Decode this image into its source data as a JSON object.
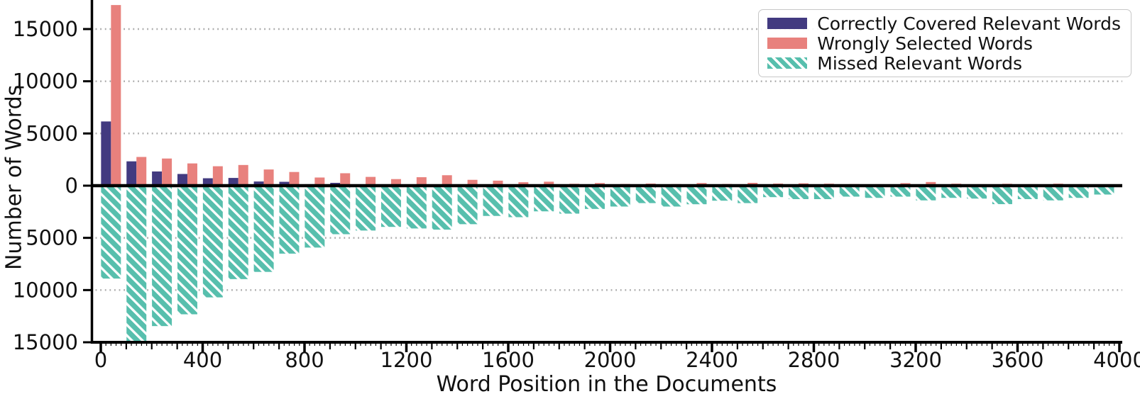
{
  "figure": {
    "ylabel": "Number of Words",
    "xlabel": "Word Position in the Documents"
  },
  "legend": {
    "items": [
      {
        "label": "Correctly Covered Relevant Words",
        "color": "#423a80",
        "hatch": false
      },
      {
        "label": "Wrongly Selected Words",
        "color": "#e8817d",
        "hatch": false
      },
      {
        "label": "Missed Relevant Words",
        "color": "#57bfad",
        "hatch": true
      }
    ]
  },
  "chart_data": {
    "type": "bar",
    "variant": "diverging-grouped-histogram",
    "title": "",
    "xlabel": "Word Position in the Documents",
    "ylabel": "Number of Words",
    "xlim": [
      -40,
      4010
    ],
    "ylim": [
      -15000,
      17500
    ],
    "xticks": [
      0,
      400,
      800,
      1200,
      1600,
      2000,
      2400,
      2800,
      3200,
      3600,
      4000
    ],
    "yticks": [
      15000,
      10000,
      5000,
      0,
      -5000,
      -10000,
      -15000
    ],
    "ytick_labels": [
      "15000",
      "10000",
      "5000",
      "0",
      "5000",
      "10000",
      "15000"
    ],
    "grid": "horizontal-dotted",
    "legend_position": "upper right",
    "bin_width": 100,
    "bin_starts": [
      0,
      100,
      200,
      300,
      400,
      500,
      600,
      700,
      800,
      900,
      1000,
      1100,
      1200,
      1300,
      1400,
      1500,
      1600,
      1700,
      1800,
      1900,
      2000,
      2100,
      2200,
      2300,
      2400,
      2500,
      2600,
      2700,
      2800,
      2900,
      3000,
      3100,
      3200,
      3300,
      3400,
      3500,
      3600,
      3700,
      3800,
      3900
    ],
    "series": [
      {
        "name": "Correctly Covered Relevant Words",
        "color": "#423a80",
        "hatch": null,
        "direction": "up",
        "values": [
          6150,
          2330,
          1360,
          1120,
          710,
          740,
          400,
          370,
          140,
          270,
          115,
          140,
          60,
          90,
          50,
          60,
          40,
          45,
          30,
          35,
          30,
          25,
          25,
          30,
          20,
          25,
          20,
          20,
          15,
          15,
          15,
          20,
          15,
          25,
          10,
          15,
          10,
          15,
          10,
          10
        ]
      },
      {
        "name": "Wrongly Selected Words",
        "color": "#e8817d",
        "hatch": null,
        "direction": "up",
        "values": [
          17300,
          2750,
          2600,
          2130,
          1860,
          1980,
          1550,
          1310,
          780,
          1190,
          840,
          630,
          810,
          1000,
          560,
          480,
          330,
          380,
          180,
          250,
          160,
          200,
          150,
          250,
          160,
          270,
          200,
          225,
          190,
          150,
          140,
          240,
          350,
          190,
          140,
          180,
          140,
          190,
          140,
          130
        ]
      },
      {
        "name": "Missed Relevant Words",
        "color": "#57bfad",
        "hatch": "\\\\",
        "direction": "down",
        "values": [
          8900,
          15000,
          13450,
          12320,
          10700,
          8950,
          8260,
          6510,
          5930,
          4650,
          4300,
          3950,
          4100,
          4210,
          3690,
          2900,
          3020,
          2460,
          2680,
          2230,
          2000,
          1670,
          2000,
          1780,
          1440,
          1670,
          1100,
          1290,
          1290,
          1050,
          1170,
          1050,
          1410,
          1170,
          1240,
          1770,
          1290,
          1410,
          1170,
          850
        ]
      }
    ]
  }
}
